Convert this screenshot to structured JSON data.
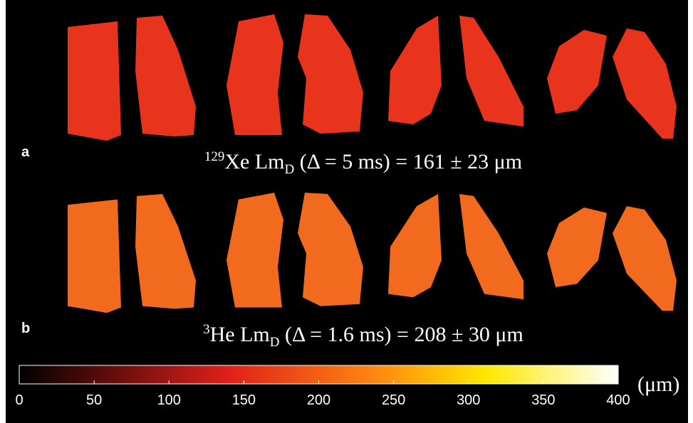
{
  "panels": [
    {
      "label": "a",
      "caption": {
        "sup": "129",
        "main": "Xe Lm",
        "sub": "D",
        "rest": " (Δ = 5 ms) = 161 ± 23 μm"
      }
    },
    {
      "label": "b",
      "caption": {
        "sup": "3",
        "main": "He Lm",
        "sub": "D",
        "rest": " (Δ = 1.6 ms) = 208 ± 30 μm"
      }
    }
  ],
  "colorbar": {
    "lim": [
      0,
      400
    ],
    "ticks": [
      0,
      50,
      100,
      150,
      200,
      250,
      300,
      350,
      400
    ],
    "unit": "(μm)"
  }
}
